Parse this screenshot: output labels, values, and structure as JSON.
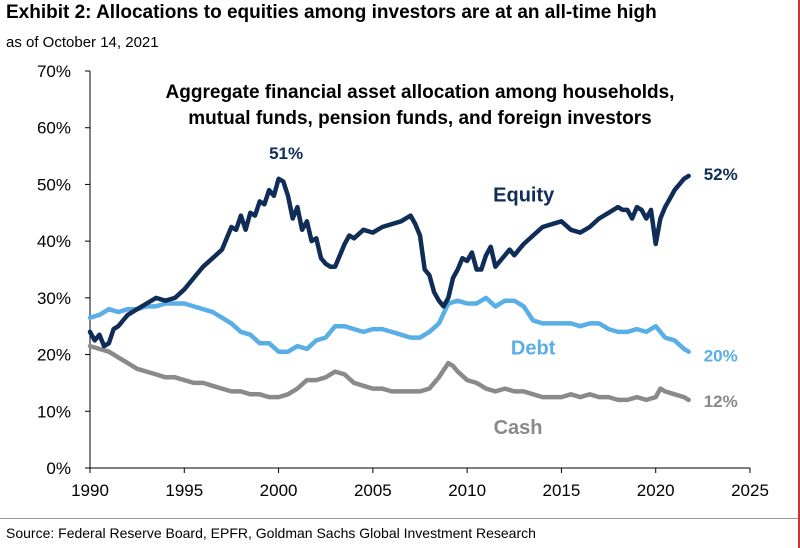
{
  "header": {
    "title": "Exhibit 2: Allocations to equities among investors are at an all-time high",
    "subtitle": "as of October 14, 2021"
  },
  "footer": {
    "source": "Source: Federal Reserve Board, EPFR, Goldman Sachs Global Investment Research"
  },
  "chart_data": {
    "type": "line",
    "title": "Aggregate financial asset allocation among households, mutual funds, pension funds, and foreign investors",
    "title_lines": [
      "Aggregate financial asset allocation among households,",
      "mutual funds, pension funds, and foreign investors"
    ],
    "xlabel": "",
    "ylabel": "",
    "xlim": [
      1990,
      2025
    ],
    "ylim": [
      0,
      70
    ],
    "x_ticks": [
      1990,
      1995,
      2000,
      2005,
      2010,
      2015,
      2020,
      2025
    ],
    "x_tick_labels": [
      "1990",
      "1995",
      "2000",
      "2005",
      "2010",
      "2015",
      "2020",
      "2025"
    ],
    "y_ticks": [
      0,
      10,
      20,
      30,
      40,
      50,
      60,
      70
    ],
    "y_tick_labels": [
      "0%",
      "10%",
      "20%",
      "30%",
      "40%",
      "50%",
      "60%",
      "70%"
    ],
    "grid": false,
    "legend": "inline labels",
    "series": [
      {
        "name": "Equity",
        "color": "#0f2d57",
        "end_label": "52%",
        "peak_label": "51%",
        "x": [
          1990.0,
          1990.25,
          1990.5,
          1990.75,
          1991.0,
          1991.25,
          1991.5,
          1991.75,
          1992.0,
          1992.5,
          1993.0,
          1993.5,
          1994.0,
          1994.5,
          1995.0,
          1995.5,
          1996.0,
          1996.5,
          1997.0,
          1997.25,
          1997.5,
          1997.75,
          1998.0,
          1998.25,
          1998.5,
          1998.75,
          1999.0,
          1999.25,
          1999.5,
          1999.75,
          2000.0,
          2000.25,
          2000.5,
          2000.75,
          2001.0,
          2001.25,
          2001.5,
          2001.75,
          2002.0,
          2002.25,
          2002.5,
          2002.75,
          2003.0,
          2003.25,
          2003.5,
          2003.75,
          2004.0,
          2004.5,
          2005.0,
          2005.5,
          2006.0,
          2006.5,
          2007.0,
          2007.25,
          2007.5,
          2007.75,
          2008.0,
          2008.25,
          2008.5,
          2008.75,
          2009.0,
          2009.25,
          2009.5,
          2009.75,
          2010.0,
          2010.25,
          2010.5,
          2010.75,
          2011.0,
          2011.25,
          2011.5,
          2011.75,
          2012.0,
          2012.25,
          2012.5,
          2012.75,
          2013.0,
          2013.5,
          2014.0,
          2014.5,
          2015.0,
          2015.5,
          2016.0,
          2016.5,
          2017.0,
          2017.5,
          2018.0,
          2018.25,
          2018.5,
          2018.75,
          2019.0,
          2019.25,
          2019.5,
          2019.75,
          2020.0,
          2020.25,
          2020.5,
          2020.75,
          2021.0,
          2021.25,
          2021.5,
          2021.75
        ],
        "values": [
          24.0,
          22.5,
          23.5,
          21.5,
          22.0,
          24.5,
          25.0,
          26.0,
          27.0,
          28.0,
          29.0,
          30.0,
          29.5,
          30.0,
          31.5,
          33.5,
          35.5,
          37.0,
          38.5,
          40.5,
          42.5,
          42.0,
          44.5,
          42.0,
          45.0,
          44.5,
          47.0,
          46.5,
          49.0,
          48.0,
          51.0,
          50.5,
          48.0,
          44.0,
          46.0,
          42.0,
          43.5,
          40.0,
          40.5,
          37.0,
          36.0,
          35.5,
          35.5,
          37.5,
          39.5,
          41.0,
          40.5,
          42.0,
          41.5,
          42.5,
          43.0,
          43.5,
          44.5,
          43.0,
          41.0,
          35.0,
          34.0,
          31.0,
          29.5,
          28.5,
          30.0,
          33.5,
          35.0,
          37.0,
          36.5,
          38.0,
          35.0,
          35.0,
          37.5,
          39.0,
          35.5,
          36.5,
          37.5,
          38.5,
          37.5,
          38.5,
          39.5,
          41.0,
          42.5,
          43.0,
          43.5,
          42.0,
          41.5,
          42.5,
          44.0,
          45.0,
          46.0,
          45.5,
          45.5,
          44.0,
          46.0,
          45.5,
          44.0,
          45.5,
          39.5,
          44.0,
          46.0,
          47.5,
          49.0,
          50.0,
          51.0,
          51.5
        ]
      },
      {
        "name": "Debt",
        "color": "#5aaee6",
        "end_label": "20%",
        "x": [
          1990.0,
          1990.5,
          1991.0,
          1991.5,
          1992.0,
          1992.5,
          1993.0,
          1993.5,
          1994.0,
          1994.5,
          1995.0,
          1995.5,
          1996.0,
          1996.5,
          1997.0,
          1997.5,
          1998.0,
          1998.5,
          1999.0,
          1999.5,
          2000.0,
          2000.5,
          2001.0,
          2001.5,
          2002.0,
          2002.5,
          2003.0,
          2003.5,
          2004.0,
          2004.5,
          2005.0,
          2005.5,
          2006.0,
          2006.5,
          2007.0,
          2007.5,
          2008.0,
          2008.5,
          2009.0,
          2009.5,
          2010.0,
          2010.5,
          2011.0,
          2011.5,
          2012.0,
          2012.5,
          2013.0,
          2013.5,
          2014.0,
          2014.5,
          2015.0,
          2015.5,
          2016.0,
          2016.5,
          2017.0,
          2017.5,
          2018.0,
          2018.5,
          2019.0,
          2019.5,
          2020.0,
          2020.5,
          2021.0,
          2021.5,
          2021.75
        ],
        "values": [
          26.5,
          27.0,
          28.0,
          27.5,
          28.0,
          28.0,
          28.5,
          28.5,
          29.0,
          29.0,
          29.0,
          28.5,
          28.0,
          27.5,
          26.5,
          25.5,
          24.0,
          23.5,
          22.0,
          22.0,
          20.5,
          20.5,
          21.5,
          21.0,
          22.5,
          23.0,
          25.0,
          25.0,
          24.5,
          24.0,
          24.5,
          24.5,
          24.0,
          23.5,
          23.0,
          23.0,
          24.0,
          25.5,
          29.0,
          29.5,
          29.0,
          29.0,
          30.0,
          28.5,
          29.5,
          29.5,
          28.5,
          26.0,
          25.5,
          25.5,
          25.5,
          25.5,
          25.0,
          25.5,
          25.5,
          24.5,
          24.0,
          24.0,
          24.5,
          24.0,
          25.0,
          23.0,
          22.5,
          21.0,
          20.5
        ]
      },
      {
        "name": "Cash",
        "color": "#8a8a8a",
        "end_label": "12%",
        "x": [
          1990.0,
          1990.5,
          1991.0,
          1991.5,
          1992.0,
          1992.5,
          1993.0,
          1993.5,
          1994.0,
          1994.5,
          1995.0,
          1995.5,
          1996.0,
          1996.5,
          1997.0,
          1997.5,
          1998.0,
          1998.5,
          1999.0,
          1999.5,
          2000.0,
          2000.5,
          2001.0,
          2001.5,
          2002.0,
          2002.5,
          2003.0,
          2003.5,
          2004.0,
          2004.5,
          2005.0,
          2005.5,
          2006.0,
          2006.5,
          2007.0,
          2007.5,
          2008.0,
          2008.5,
          2009.0,
          2009.25,
          2009.5,
          2010.0,
          2010.5,
          2011.0,
          2011.5,
          2012.0,
          2012.5,
          2013.0,
          2013.5,
          2014.0,
          2014.5,
          2015.0,
          2015.5,
          2016.0,
          2016.5,
          2017.0,
          2017.5,
          2018.0,
          2018.5,
          2019.0,
          2019.5,
          2020.0,
          2020.25,
          2020.5,
          2021.0,
          2021.5,
          2021.75
        ],
        "values": [
          21.5,
          21.0,
          20.5,
          19.5,
          18.5,
          17.5,
          17.0,
          16.5,
          16.0,
          16.0,
          15.5,
          15.0,
          15.0,
          14.5,
          14.0,
          13.5,
          13.5,
          13.0,
          13.0,
          12.5,
          12.5,
          13.0,
          14.0,
          15.5,
          15.5,
          16.0,
          17.0,
          16.5,
          15.0,
          14.5,
          14.0,
          14.0,
          13.5,
          13.5,
          13.5,
          13.5,
          14.0,
          16.0,
          18.5,
          18.0,
          17.0,
          15.5,
          15.0,
          14.0,
          13.5,
          14.0,
          13.5,
          13.5,
          13.0,
          12.5,
          12.5,
          12.5,
          13.0,
          12.5,
          13.0,
          12.5,
          12.5,
          12.0,
          12.0,
          12.5,
          12.0,
          12.5,
          14.0,
          13.5,
          13.0,
          12.5,
          12.0
        ]
      }
    ]
  }
}
